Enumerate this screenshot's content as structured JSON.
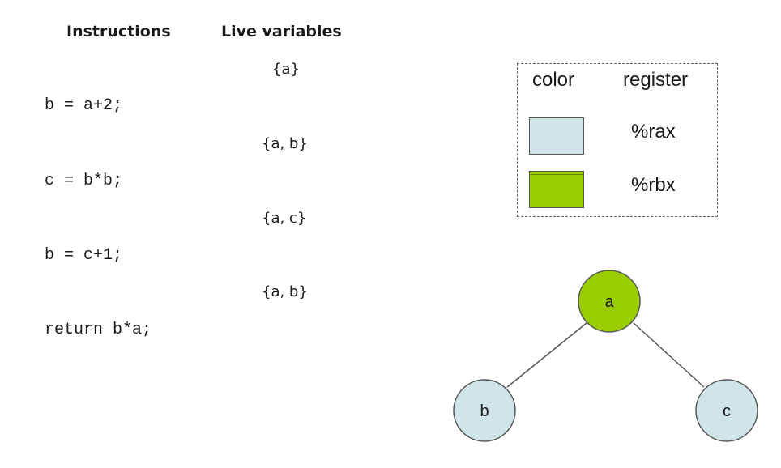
{
  "headers": {
    "instructions": "Instructions",
    "live_variables": "Live variables"
  },
  "instructions": [
    "b = a+2;",
    "c = b*b;",
    "b = c+1;",
    "return b*a;"
  ],
  "live_sets": [
    "{a}",
    "{a, b}",
    "{a, c}",
    "{a, b}"
  ],
  "legend": {
    "color_header": "color",
    "register_header": "register",
    "entries": [
      {
        "color": "#cfe5e8",
        "register": "%rax"
      },
      {
        "color": "#9acd00",
        "register": "%rbx"
      }
    ]
  },
  "graph": {
    "nodes": [
      {
        "id": "a",
        "label": "a",
        "color": "#9acd00"
      },
      {
        "id": "b",
        "label": "b",
        "color": "#cfe5e8"
      },
      {
        "id": "c",
        "label": "c",
        "color": "#cfe5e8"
      }
    ],
    "edges": [
      [
        "a",
        "b"
      ],
      [
        "a",
        "c"
      ]
    ]
  }
}
